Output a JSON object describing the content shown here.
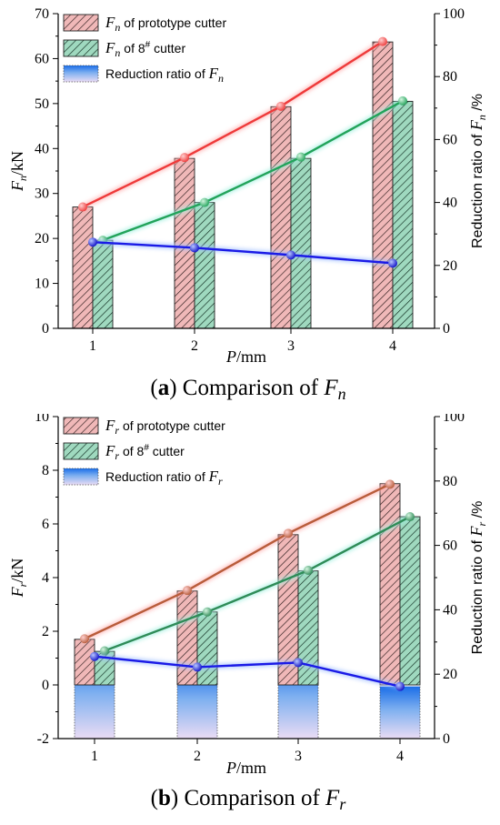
{
  "chart_data": [
    {
      "type": "bar",
      "caption": {
        "letter": "a",
        "text": "Comparison of",
        "var": "F",
        "sub": "n"
      },
      "categories": [
        "1",
        "2",
        "3",
        "4"
      ],
      "xlabel": {
        "var": "P",
        "unit": "/mm"
      },
      "ylabel": {
        "var": "F",
        "sub": "n",
        "unit": "/kN"
      },
      "y2label": {
        "text": "Reduction ratio of",
        "var": "F",
        "sub": "n",
        "unit": " /%"
      },
      "ylim": [
        0,
        70
      ],
      "yticks": [
        "0",
        "10",
        "20",
        "30",
        "40",
        "50",
        "60",
        "70"
      ],
      "y2lim": [
        0,
        100
      ],
      "y2ticks": [
        "0",
        "20",
        "40",
        "60",
        "80",
        "100"
      ],
      "legend": [
        {
          "var": "F",
          "sub": "n",
          "text": " of prototype cutter"
        },
        {
          "var": "F",
          "sub": "n",
          "text": " of 8",
          "sup": "#",
          "text2": " cutter"
        },
        {
          "text": "Reduction ratio of ",
          "var": "F",
          "sub": "n"
        }
      ],
      "series": [
        {
          "values": [
            27.0,
            37.8,
            49.3,
            63.7
          ],
          "color": "#c0504d",
          "line_color": "#ee3a3a",
          "line_values": [
            27.0,
            38.0,
            49.4,
            63.8
          ]
        },
        {
          "values": [
            19.6,
            28.0,
            37.8,
            50.5
          ],
          "color": "#1e9e6a",
          "line_color": "#22a35a",
          "line_values": [
            19.6,
            28.0,
            38.1,
            50.6
          ]
        },
        {
          "values": [
            27.4,
            25.6,
            23.3,
            20.7
          ],
          "color": "#1060e0",
          "line_color": "#1a1ae6",
          "axis": "right"
        }
      ]
    },
    {
      "type": "bar",
      "caption": {
        "letter": "b",
        "text": "Comparison of",
        "var": "F",
        "sub": "r"
      },
      "categories": [
        "1",
        "2",
        "3",
        "4"
      ],
      "xlabel": {
        "var": "P",
        "unit": "/mm"
      },
      "ylabel": {
        "var": "F",
        "sub": "r",
        "unit": "/kN"
      },
      "y2label": {
        "text": "Reduction ratio of",
        "var": "F",
        "sub": "r",
        "unit": " /%"
      },
      "ylim": [
        -2,
        10
      ],
      "yticks": [
        "-2",
        "0",
        "2",
        "4",
        "6",
        "8",
        "10"
      ],
      "y2lim": [
        0,
        100
      ],
      "y2ticks": [
        "0",
        "20",
        "40",
        "60",
        "80",
        "100"
      ],
      "legend": [
        {
          "var": "F",
          "sub": "r",
          "text": " of prototype cutter"
        },
        {
          "var": "F",
          "sub": "r",
          "text": " of 8",
          "sup": "#",
          "text2": " cutter"
        },
        {
          "text": "Reduction ratio of  ",
          "var": "F",
          "sub": "r"
        }
      ],
      "series": [
        {
          "values": [
            1.7,
            3.5,
            5.6,
            7.5
          ],
          "color": "#c0504d",
          "line_color": "#b85c3a",
          "line_values": [
            1.72,
            3.52,
            5.65,
            7.48
          ]
        },
        {
          "values": [
            1.25,
            2.72,
            4.25,
            6.27
          ],
          "color": "#1e9e6a",
          "line_color": "#2e8b57",
          "line_values": [
            1.27,
            2.72,
            4.27,
            6.27
          ]
        },
        {
          "values": [
            25.5,
            22.2,
            23.6,
            16.2
          ],
          "color": "#1060e0",
          "line_color": "#1a1ae6",
          "axis": "right"
        }
      ]
    }
  ]
}
